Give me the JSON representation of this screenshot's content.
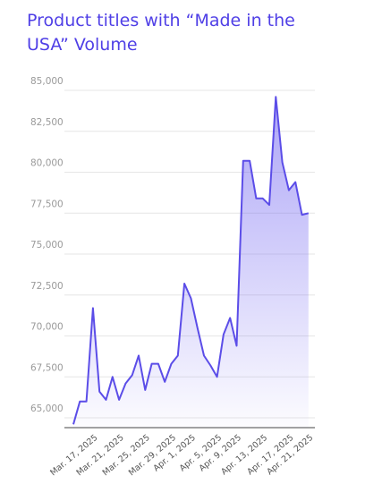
{
  "chart_data": {
    "type": "line",
    "title": "Product titles with “Made in the USA” Volume",
    "categories": [
      null,
      null,
      null,
      "Mar. 17, 2025",
      null,
      null,
      null,
      "Mar. 21, 2025",
      null,
      null,
      null,
      "Mar. 25, 2025",
      null,
      null,
      null,
      "Mar. 29, 2025",
      null,
      null,
      "Apr. 1, 2025",
      null,
      null,
      null,
      "Apr. 5, 2025",
      null,
      null,
      "Apr. 9, 2025",
      null,
      null,
      null,
      "Apr. 13, 2025",
      null,
      null,
      null,
      "Apr. 17, 2025",
      null,
      null,
      "Apr. 21, 2025"
    ],
    "series": [
      {
        "name": "Volume",
        "color": "#5b4de8",
        "values": [
          64600,
          66000,
          66000,
          71700,
          66600,
          66100,
          67500,
          66100,
          67100,
          67600,
          68800,
          66700,
          68300,
          68300,
          67200,
          68300,
          68800,
          73200,
          72300,
          70500,
          68800,
          68200,
          67500,
          70100,
          71100,
          69400,
          80700,
          80700,
          78400,
          78400,
          78000,
          84600,
          80600,
          78900,
          79400,
          77400,
          77500
        ]
      }
    ],
    "ylim": [
      64400,
      85000
    ],
    "yticks": [
      {
        "value": 65000,
        "label": "65,000"
      },
      {
        "value": 67500,
        "label": "67,500"
      },
      {
        "value": 70000,
        "label": "70,000"
      },
      {
        "value": 72500,
        "label": "72,500"
      },
      {
        "value": 75000,
        "label": "75,000"
      },
      {
        "value": 77500,
        "label": "77,500"
      },
      {
        "value": 80000,
        "label": "80,000"
      },
      {
        "value": 82500,
        "label": "82,500"
      },
      {
        "value": 85000,
        "label": "85,000"
      }
    ],
    "grid": true
  }
}
